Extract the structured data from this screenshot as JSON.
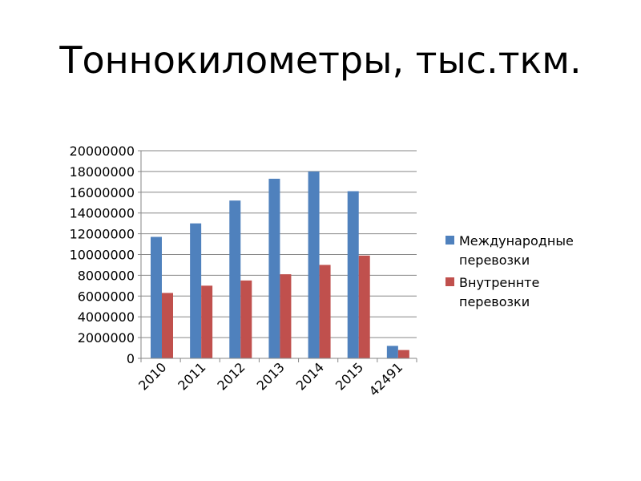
{
  "slide": {
    "title": "Тоннокилометры, тыс.ткм."
  },
  "chart_data": {
    "type": "bar",
    "title": "",
    "xlabel": "",
    "ylabel": "",
    "categories": [
      "2010",
      "2011",
      "2012",
      "2013",
      "2014",
      "2015",
      "42491"
    ],
    "series": [
      {
        "name": "Международные перевозки",
        "color": "#4f81bd",
        "values": [
          11700000,
          13000000,
          15200000,
          17300000,
          18000000,
          16100000,
          1200000
        ]
      },
      {
        "name": "Внутреннте перевозки",
        "color": "#c0504d",
        "values": [
          6300000,
          7000000,
          7500000,
          8100000,
          9000000,
          9900000,
          800000
        ]
      }
    ],
    "ylim": [
      0,
      20000000
    ],
    "yticks": [
      "0",
      "2000000",
      "4000000",
      "6000000",
      "8000000",
      "10000000",
      "12000000",
      "14000000",
      "16000000",
      "18000000",
      "20000000"
    ],
    "grid": true,
    "legend": "right",
    "legend_lines": [
      [
        "Международные",
        "перевозки"
      ],
      [
        "Внутреннте",
        "перевозки"
      ]
    ]
  }
}
